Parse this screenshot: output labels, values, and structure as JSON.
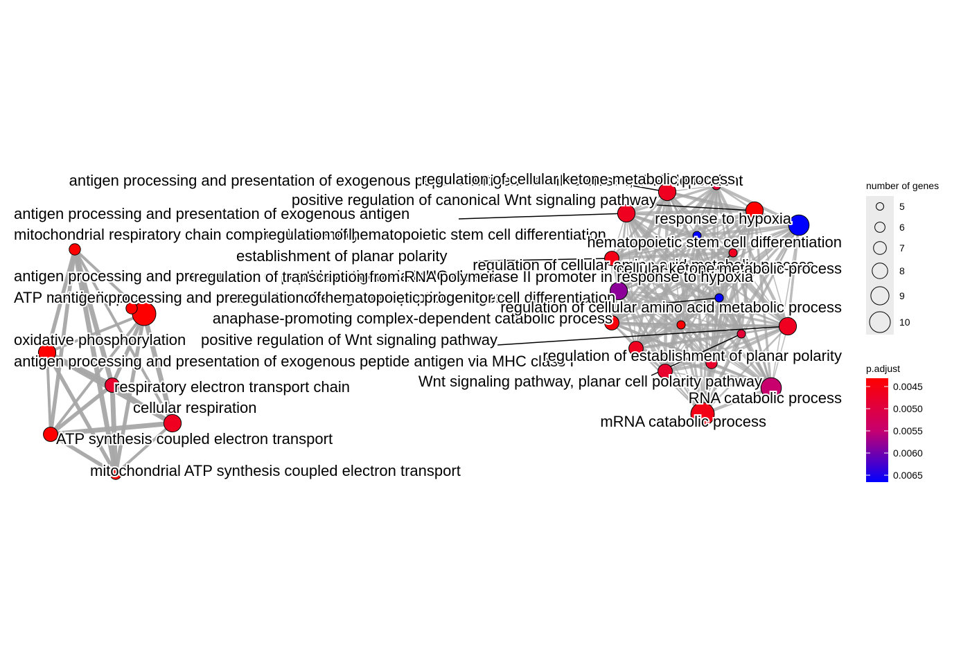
{
  "legend": {
    "size_title": "number of genes",
    "size_breaks": [
      "5",
      "6",
      "7",
      "8",
      "9",
      "10"
    ],
    "color_title": "p.adjust",
    "color_breaks": [
      "0.0045",
      "0.0050",
      "0.0055",
      "0.0060",
      "0.0065"
    ],
    "color_low": "#ff0000",
    "color_high": "#0000ff"
  },
  "edge_color": "#a6a6a6",
  "nodes": [
    {
      "id": "mito_chain",
      "label": "mitochondrial respiratory chain complex I assembly",
      "genes": 6,
      "p": 0.0045
    },
    {
      "id": "antigen_1",
      "label": "antigen processing and presentation of exogenous peptide antigen",
      "genes": 10,
      "p": 0.0045
    },
    {
      "id": "oxphos",
      "label": "oxidative phosphorylation",
      "genes": 8,
      "p": 0.0045
    },
    {
      "id": "resp_chain",
      "label": "respiratory electron transport chain",
      "genes": 7,
      "p": 0.0049
    },
    {
      "id": "cell_resp",
      "label": "cellular respiration",
      "genes": 8,
      "p": 0.0048
    },
    {
      "id": "atp_synth",
      "label": "ATP synthesis coupled electron transport",
      "genes": 7,
      "p": 0.0045
    },
    {
      "id": "mito_atp",
      "label": "mitochondrial ATP synthesis coupled electron transport",
      "genes": 6,
      "p": 0.0045
    },
    {
      "id": "reg_ketone",
      "label": "regulation of cellular ketone metabolic process",
      "genes": 8,
      "p": 0.0048
    },
    {
      "id": "pos_canon_wnt",
      "label": "positive regulation of canonical Wnt signaling pathway",
      "genes": 8,
      "p": 0.0045
    },
    {
      "id": "antigen_exo",
      "label": "antigen processing and presentation of exogenous antigen",
      "genes": 8,
      "p": 0.0048
    },
    {
      "id": "hypoxia",
      "label": "response to hypoxia",
      "genes": 9,
      "p": 0.0065
    },
    {
      "id": "reg_hsc",
      "label": "regulation of hematopoietic stem cell differentiation",
      "genes": 5,
      "p": 0.0065
    },
    {
      "id": "hsc_diff",
      "label": "hematopoietic stem cell differentiation",
      "genes": 5,
      "p": 0.0048
    },
    {
      "id": "planar_pol",
      "label": "establishment of planar polarity",
      "genes": 7,
      "p": 0.0047
    },
    {
      "id": "reg_aa",
      "label": "regulation of cellular amino acid metabolic process",
      "genes": 8,
      "p": 0.0058
    },
    {
      "id": "ketone",
      "label": "cellular ketone metabolic process",
      "genes": 5,
      "p": 0.005
    },
    {
      "id": "reg_transcr_hyp",
      "label": "regulation of transcription from RNA polymerase II promoter in response to hypoxia",
      "genes": 5,
      "p": 0.0065
    },
    {
      "id": "reg_hpc",
      "label": "regulation of hematopoietic progenitor cell differentiation",
      "genes": 5,
      "p": 0.0065
    },
    {
      "id": "apc",
      "label": "anaphase-promoting complex-dependent catabolic process",
      "genes": 7,
      "p": 0.0046
    },
    {
      "id": "reg_aa2",
      "label": "regulation of cellular amino acid metabolic process",
      "genes": 8,
      "p": 0.0048
    },
    {
      "id": "reg_aa_small",
      "label": "",
      "genes": 5,
      "p": 0.0045
    },
    {
      "id": "pos_wnt",
      "label": "positive regulation of Wnt signaling pathway",
      "genes": 5,
      "p": 0.005
    },
    {
      "id": "antigen_mhc",
      "label": "antigen processing and presentation of exogenous peptide antigen via MHC class I",
      "genes": 7,
      "p": 0.0048
    },
    {
      "id": "reg_planar",
      "label": "regulation of establishment of planar polarity",
      "genes": 7,
      "p": 0.0049
    },
    {
      "id": "wnt_pcp",
      "label": "Wnt signaling pathway, planar cell polarity pathway",
      "genes": 6,
      "p": 0.0049
    },
    {
      "id": "rna_cat",
      "label": "RNA catabolic process",
      "genes": 9,
      "p": 0.0055
    },
    {
      "id": "mrna_cat",
      "label": "mRNA catabolic process",
      "genes": 10,
      "p": 0.0047
    },
    {
      "id": "atp_antigen",
      "label": "ATP metabolic process",
      "genes": 6,
      "p": 0.0045
    }
  ],
  "text_labels": [
    "antigen processing and presentation of exogenous peptide antigen via MHC class I, TAP-dependent",
    "regulation of cellular ketone metabolic process",
    "positive regulation of canonical Wnt signaling pathway",
    "antigen processing and presentation of exogenous antigen",
    "response to hypoxia",
    "mitochondrial respiratory chain complex I assembly",
    "regulation of hematopoietic stem cell differentiation",
    "hematopoietic stem cell differentiation",
    "establishment of planar polarity",
    "regulation of cellular amino acid metabolic process",
    "cellular ketone metabolic process",
    "antigen processing and presentation of peptide antigen via MHC class I",
    "regulation of transcription from RNA polymerase II promoter in response to hypoxia",
    "ATP metabolic process",
    "antigen processing and presentation of exogenous peptide antigen",
    "regulation of hematopoietic progenitor cell differentiation",
    "anaphase-promoting complex-dependent catabolic process",
    "regulation of cellular amino acid metabolic process",
    "oxidative phosphorylation",
    "positive regulation of Wnt signaling pathway",
    "antigen processing and presentation of exogenous peptide antigen via MHC class I",
    "regulation of establishment of planar polarity",
    "respiratory electron transport chain",
    "Wnt signaling pathway, planar cell polarity pathway",
    "cellular respiration",
    "RNA catabolic process",
    "mRNA catabolic process",
    "ATP synthesis coupled electron transport",
    "mitochondrial ATP synthesis coupled electron transport"
  ]
}
